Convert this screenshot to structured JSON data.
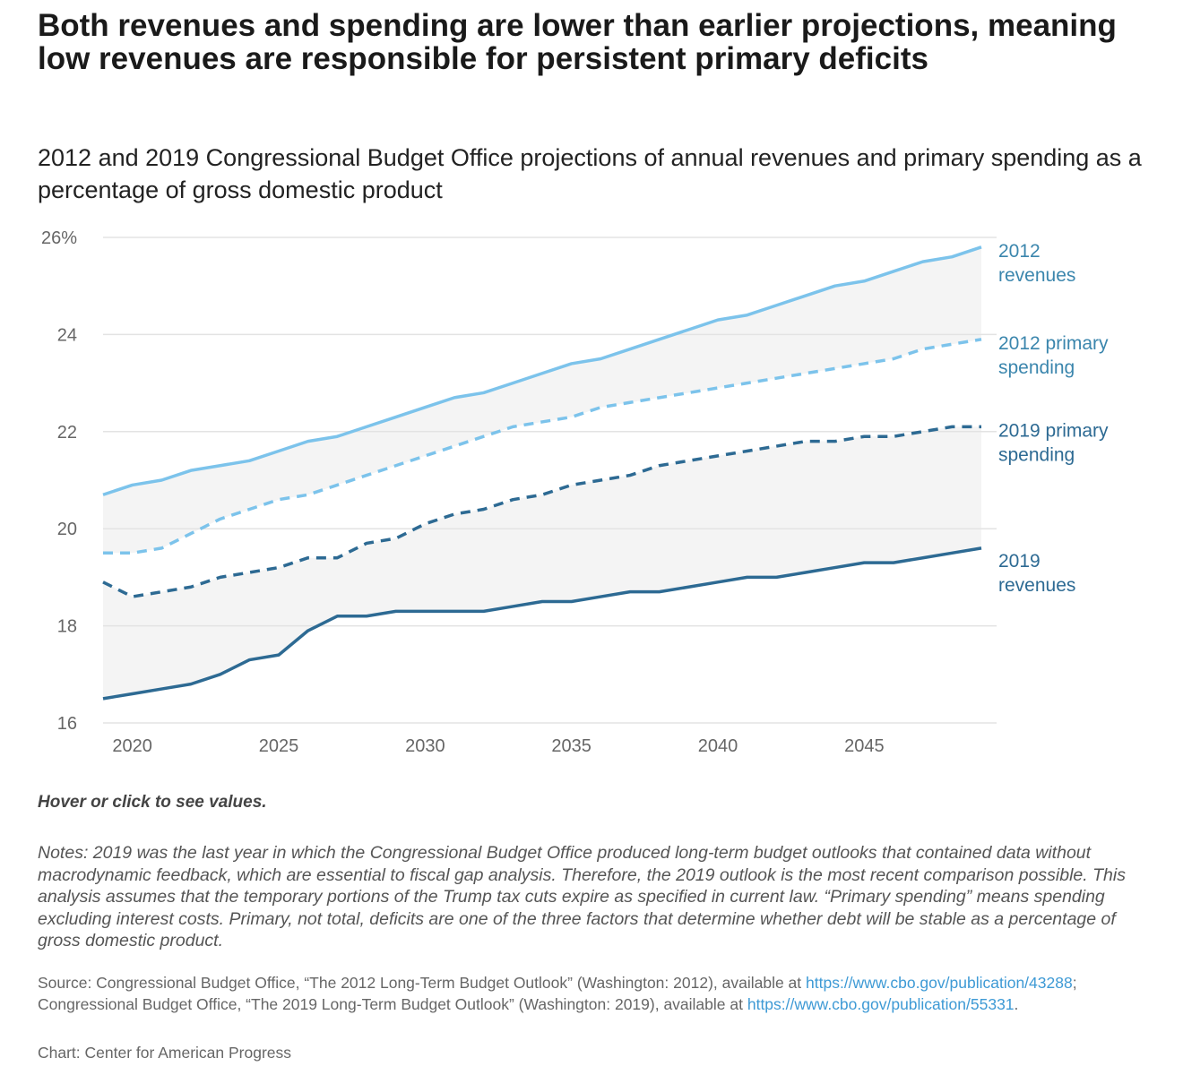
{
  "title": "Both revenues and spending are lower than earlier projections, meaning low revenues are responsible for persistent primary deficits",
  "subtitle": "2012 and 2019 Congressional Budget Office projections of annual revenues and primary spending as a percentage of gross domestic product",
  "hover_hint": "Hover or click to see values.",
  "notes": "Notes: 2019 was the last year in which the Congressional Budget Office produced long-term budget outlooks that contained data without macrodynamic feedback, which are essential to fiscal gap analysis. Therefore, the 2019 outlook is the most recent comparison possible. This analysis assumes that the temporary portions of the Trump tax cuts expire as specified in current law. “Primary spending” means spending excluding interest costs. Primary, not total, deficits are one of the three factors that determine whether debt will be stable as a percentage of gross domestic product.",
  "source": {
    "part1": "Source: Congressional Budget Office, “The 2012 Long-Term Budget Outlook” (Washington: 2012), available at ",
    "link1": "https://www.cbo.gov/publication/43288",
    "part2": "; Congressional Budget Office, “The 2019 Long-Term Budget Outlook” (Washington: 2019), available at ",
    "link2": "https://www.cbo.gov/publication/55331",
    "part3": "."
  },
  "credit": "Chart: Center for American Progress",
  "colors": {
    "light": "#7cc3eb",
    "dark": "#2d6a93",
    "label_light": "#3b86ad",
    "label_dark": "#2d6a93",
    "fill": "#f4f4f4",
    "grid": "#e3e3e3"
  },
  "chart_data": {
    "type": "line",
    "title": "Both revenues and spending are lower than earlier projections, meaning low revenues are responsible for persistent primary deficits",
    "xlabel": "",
    "ylabel": "",
    "x": [
      2019,
      2020,
      2021,
      2022,
      2023,
      2024,
      2025,
      2026,
      2027,
      2028,
      2029,
      2030,
      2031,
      2032,
      2033,
      2034,
      2035,
      2036,
      2037,
      2038,
      2039,
      2040,
      2041,
      2042,
      2043,
      2044,
      2045,
      2046,
      2047,
      2048,
      2049
    ],
    "xlim": [
      2019,
      2049
    ],
    "ylim": [
      16,
      26
    ],
    "x_ticks": [
      2020,
      2025,
      2030,
      2035,
      2040,
      2045
    ],
    "x_tick_labels": [
      "2020",
      "2025",
      "2030",
      "2035",
      "2040",
      "2045"
    ],
    "y_ticks": [
      16,
      18,
      20,
      22,
      24,
      26
    ],
    "y_tick_labels": [
      "16",
      "18",
      "20",
      "22",
      "24",
      "26%"
    ],
    "grid": true,
    "legend": "direct-labels-right",
    "shaded_ranges": [
      [
        "2012 revenues",
        "2012 primary spending"
      ],
      [
        "2019 primary spending",
        "2019 revenues"
      ]
    ],
    "series": [
      {
        "name": "2012 revenues",
        "label_lines": [
          "2012",
          "revenues"
        ],
        "color": "light",
        "dashed": false,
        "values": [
          20.7,
          20.9,
          21.0,
          21.2,
          21.3,
          21.4,
          21.6,
          21.8,
          21.9,
          22.1,
          22.3,
          22.5,
          22.7,
          22.8,
          23.0,
          23.2,
          23.4,
          23.5,
          23.7,
          23.9,
          24.1,
          24.3,
          24.4,
          24.6,
          24.8,
          25.0,
          25.1,
          25.3,
          25.5,
          25.6,
          25.8
        ]
      },
      {
        "name": "2012 primary spending",
        "label_lines": [
          "2012 primary",
          "spending"
        ],
        "color": "light",
        "dashed": true,
        "values": [
          19.5,
          19.5,
          19.6,
          19.9,
          20.2,
          20.4,
          20.6,
          20.7,
          20.9,
          21.1,
          21.3,
          21.5,
          21.7,
          21.9,
          22.1,
          22.2,
          22.3,
          22.5,
          22.6,
          22.7,
          22.8,
          22.9,
          23.0,
          23.1,
          23.2,
          23.3,
          23.4,
          23.5,
          23.7,
          23.8,
          23.9
        ]
      },
      {
        "name": "2019 primary spending",
        "label_lines": [
          "2019 primary",
          "spending"
        ],
        "color": "dark",
        "dashed": true,
        "values": [
          18.9,
          18.6,
          18.7,
          18.8,
          19.0,
          19.1,
          19.2,
          19.4,
          19.4,
          19.7,
          19.8,
          20.1,
          20.3,
          20.4,
          20.6,
          20.7,
          20.9,
          21.0,
          21.1,
          21.3,
          21.4,
          21.5,
          21.6,
          21.7,
          21.8,
          21.8,
          21.9,
          21.9,
          22.0,
          22.1,
          22.1
        ]
      },
      {
        "name": "2019 revenues",
        "label_lines": [
          "2019",
          "revenues"
        ],
        "color": "dark",
        "dashed": false,
        "values": [
          16.5,
          16.6,
          16.7,
          16.8,
          17.0,
          17.3,
          17.4,
          17.9,
          18.2,
          18.2,
          18.3,
          18.3,
          18.3,
          18.3,
          18.4,
          18.5,
          18.5,
          18.6,
          18.7,
          18.7,
          18.8,
          18.9,
          19.0,
          19.0,
          19.1,
          19.2,
          19.3,
          19.3,
          19.4,
          19.5,
          19.6
        ]
      }
    ]
  }
}
